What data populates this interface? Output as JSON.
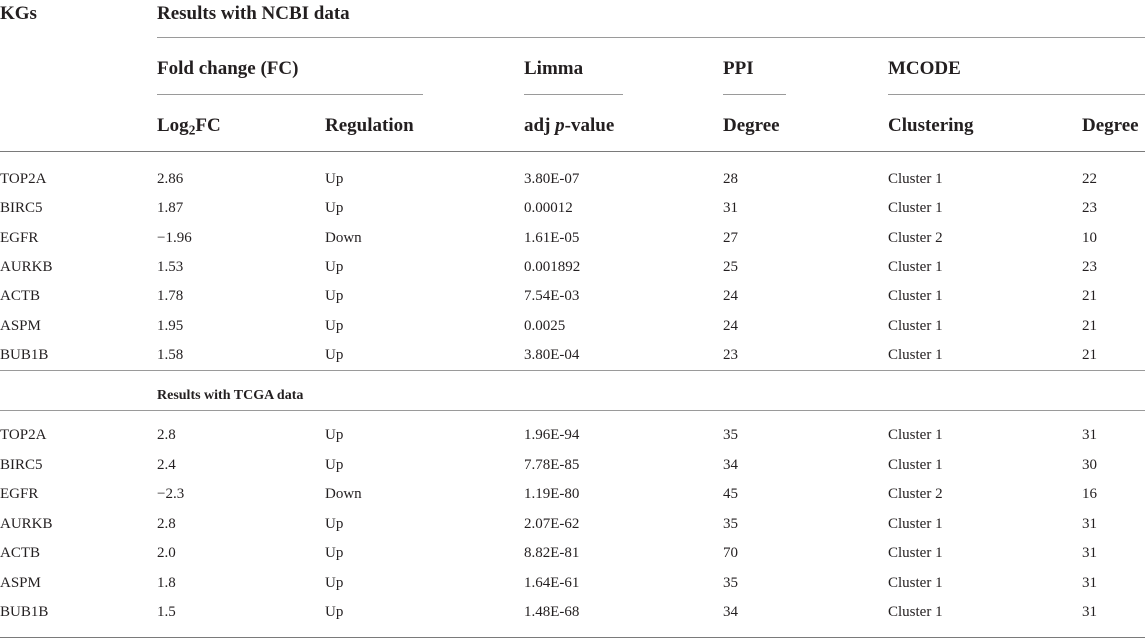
{
  "header": {
    "kgs": "KGs",
    "results_ncbi": "Results with NCBI data",
    "groups": {
      "fold_change": "Fold change (FC)",
      "limma": "Limma",
      "ppi": "PPI",
      "mcode": "MCODE"
    },
    "columns": {
      "log2fc_prefix": "Log",
      "log2fc_sub": "2",
      "log2fc_suffix": "FC",
      "regulation": "Regulation",
      "adj_prefix": "adj ",
      "adj_italic": "p",
      "adj_suffix": "-value",
      "ppi_degree": "Degree",
      "clustering": "Clustering",
      "mcode_degree": "Degree"
    }
  },
  "ncbi_rows": [
    {
      "kg": "TOP2A",
      "log2fc": "2.86",
      "regulation": "Up",
      "adj_p": "3.80E-07",
      "ppi_degree": "28",
      "cluster": "Cluster 1",
      "mcode_degree": "22"
    },
    {
      "kg": "BIRC5",
      "log2fc": "1.87",
      "regulation": "Up",
      "adj_p": "0.00012",
      "ppi_degree": "31",
      "cluster": "Cluster 1",
      "mcode_degree": "23"
    },
    {
      "kg": "EGFR",
      "log2fc": "−1.96",
      "regulation": "Down",
      "adj_p": "1.61E-05",
      "ppi_degree": "27",
      "cluster": "Cluster 2",
      "mcode_degree": "10"
    },
    {
      "kg": "AURKB",
      "log2fc": "1.53",
      "regulation": "Up",
      "adj_p": "0.001892",
      "ppi_degree": "25",
      "cluster": "Cluster 1",
      "mcode_degree": "23"
    },
    {
      "kg": "ACTB",
      "log2fc": "1.78",
      "regulation": "Up",
      "adj_p": "7.54E-03",
      "ppi_degree": "24",
      "cluster": "Cluster 1",
      "mcode_degree": "21"
    },
    {
      "kg": "ASPM",
      "log2fc": "1.95",
      "regulation": "Up",
      "adj_p": "0.0025",
      "ppi_degree": "24",
      "cluster": "Cluster 1",
      "mcode_degree": "21"
    },
    {
      "kg": "BUB1B",
      "log2fc": "1.58",
      "regulation": "Up",
      "adj_p": "3.80E-04",
      "ppi_degree": "23",
      "cluster": "Cluster 1",
      "mcode_degree": "21"
    }
  ],
  "tcga_label": "Results with TCGA data",
  "tcga_rows": [
    {
      "kg": "TOP2A",
      "log2fc": "2.8",
      "regulation": "Up",
      "adj_p": "1.96E-94",
      "ppi_degree": "35",
      "cluster": "Cluster 1",
      "mcode_degree": "31"
    },
    {
      "kg": "BIRC5",
      "log2fc": "2.4",
      "regulation": "Up",
      "adj_p": "7.78E-85",
      "ppi_degree": "34",
      "cluster": "Cluster 1",
      "mcode_degree": "30"
    },
    {
      "kg": "EGFR",
      "log2fc": "−2.3",
      "regulation": "Down",
      "adj_p": "1.19E-80",
      "ppi_degree": "45",
      "cluster": "Cluster 2",
      "mcode_degree": "16"
    },
    {
      "kg": "AURKB",
      "log2fc": "2.8",
      "regulation": "Up",
      "adj_p": "2.07E-62",
      "ppi_degree": "35",
      "cluster": "Cluster 1",
      "mcode_degree": "31"
    },
    {
      "kg": "ACTB",
      "log2fc": "2.0",
      "regulation": "Up",
      "adj_p": "8.82E-81",
      "ppi_degree": "70",
      "cluster": "Cluster 1",
      "mcode_degree": "31"
    },
    {
      "kg": "ASPM",
      "log2fc": "1.8",
      "regulation": "Up",
      "adj_p": "1.64E-61",
      "ppi_degree": "35",
      "cluster": "Cluster 1",
      "mcode_degree": "31"
    },
    {
      "kg": "BUB1B",
      "log2fc": "1.5",
      "regulation": "Up",
      "adj_p": "1.48E-68",
      "ppi_degree": "34",
      "cluster": "Cluster 1",
      "mcode_degree": "31"
    }
  ]
}
